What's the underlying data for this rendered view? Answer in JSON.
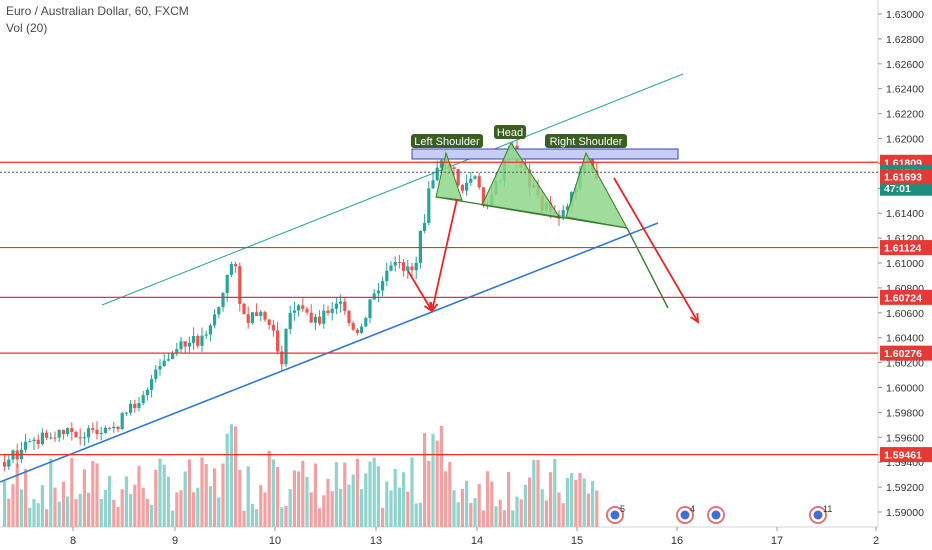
{
  "header": {
    "title": "Euro / Australian Dollar, 60, FXCM",
    "volume_indicator": "Vol (20)"
  },
  "colors": {
    "up": "#26a69a",
    "down": "#ef5350",
    "vol_up": "#8fd3cc",
    "vol_down": "#f1a1a1",
    "level": "#ff2a2a",
    "channel_upper": "#26a69a",
    "channel_lower": "#2f7bd6",
    "pattern_fill": "#8fd68a",
    "pattern_line": "#3a7d2c",
    "label_bg": "#3a5f1e",
    "zone_fill": "#c7cdf5",
    "zone_stroke": "#3b44b8",
    "arrow": "#ef2323",
    "tag_bg": "#e53935",
    "current_tag_bg": "#1e8e7e",
    "countdown_tag_bg": "#1e8e7e"
  },
  "chart_data": {
    "type": "candlestick",
    "title": "Euro / Australian Dollar, 60, FXCM",
    "indicator": "Vol (20)",
    "x_ticks": [
      "8",
      "9",
      "10",
      "13",
      "14",
      "15",
      "16",
      "17",
      "2"
    ],
    "y_ticks": [
      "1.63000",
      "1.62800",
      "1.62600",
      "1.62400",
      "1.62200",
      "1.62000",
      "1.61800",
      "1.61600",
      "1.61400",
      "1.61200",
      "1.61000",
      "1.60800",
      "1.60600",
      "1.60400",
      "1.60200",
      "1.60000",
      "1.59800",
      "1.59600",
      "1.59400",
      "1.59200",
      "1.59000"
    ],
    "ylim": [
      1.5886,
      1.6313
    ],
    "price_levels": [
      {
        "value": "1.61809",
        "type": "resistance"
      },
      {
        "value": "1.61729",
        "type": "current"
      },
      {
        "value": "47:01",
        "type": "countdown"
      },
      {
        "value": "1.61693",
        "type": "level"
      },
      {
        "value": "1.61124",
        "type": "support"
      },
      {
        "value": "1.60724",
        "type": "support"
      },
      {
        "value": "1.60276",
        "type": "support"
      },
      {
        "value": "1.59461",
        "type": "support"
      }
    ],
    "annotations": [
      "Left Shoulder",
      "Head",
      "Right Shoulder"
    ],
    "event_markers": [
      {
        "label": "5"
      },
      {
        "label": "4"
      },
      {
        "label": ""
      },
      {
        "label": "11"
      }
    ],
    "trend_lines": [
      {
        "name": "upper channel",
        "from": [
          1.6057,
          1.6057
        ],
        "to": [
          1.6248,
          1.6248
        ]
      },
      {
        "name": "lower channel",
        "from": [
          1.5915,
          1.5915
        ],
        "to": [
          1.6128,
          1.6128
        ]
      }
    ]
  }
}
